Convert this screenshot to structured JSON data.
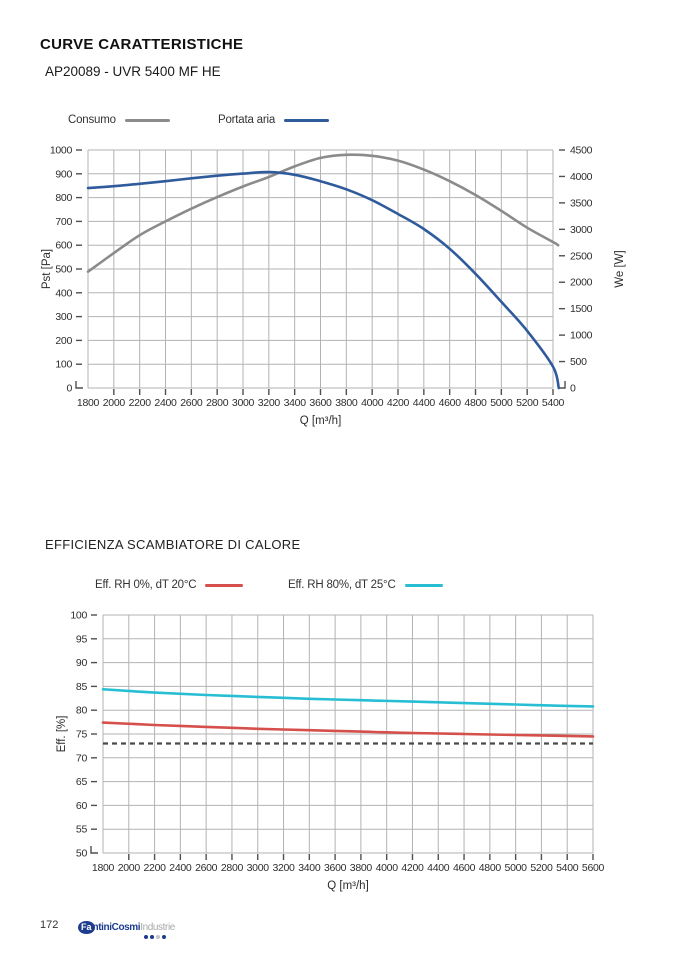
{
  "page": {
    "title": "CURVE CARATTERISTICHE",
    "subtitle": "AP20089 - UVR 5400 MF HE",
    "section2_title": "EFFICIENZA SCAMBIATORE DI CALORE",
    "page_number": "172"
  },
  "logo": {
    "part1": "Fa",
    "part2": "ntiniCosmi",
    "part3": "Industrie",
    "dot_colors": [
      "#1c3d8f",
      "#1c3d8f",
      "#c4c4c4",
      "#1c3d8f"
    ]
  },
  "colors": {
    "consumo_gray": "#8b8b8b",
    "portata_blue": "#2f5b9c",
    "eff_red": "#d6504b",
    "eff_cyan": "#27bed4",
    "reference_dash": "#4a4a4a",
    "grid": "#b3b3b3"
  },
  "chart_data": [
    {
      "type": "line",
      "title": "",
      "xlabel": "Q [m³/h]",
      "ylabel": "Pst [Pa]",
      "y2label": "We [W]",
      "xlim": [
        1800,
        5400
      ],
      "x_step": 200,
      "ylim": [
        0,
        1000
      ],
      "y_step": 100,
      "y2lim": [
        0,
        4500
      ],
      "y2_step": 500,
      "grid": true,
      "legend_position": "top",
      "legend": [
        {
          "label": "Consumo",
          "color": "#8b8b8b"
        },
        {
          "label": "Portata aria",
          "color": "#2f5b9c"
        }
      ],
      "series": [
        {
          "name": "Consumo",
          "axis": "y2",
          "color": "#8b8b8b",
          "x": [
            1800,
            2000,
            2200,
            2400,
            2600,
            2800,
            3000,
            3200,
            3400,
            3600,
            3800,
            4000,
            4200,
            4400,
            4600,
            4800,
            5000,
            5200,
            5400,
            5440
          ],
          "values": [
            2200,
            2550,
            2890,
            3150,
            3390,
            3610,
            3810,
            3990,
            4190,
            4350,
            4410,
            4390,
            4300,
            4130,
            3910,
            3650,
            3350,
            3030,
            2760,
            2700
          ]
        },
        {
          "name": "Portata aria",
          "axis": "y",
          "color": "#2f5b9c",
          "x": [
            1800,
            2000,
            2200,
            2400,
            2600,
            2800,
            3000,
            3200,
            3400,
            3600,
            3800,
            4000,
            4200,
            4400,
            4600,
            4800,
            5000,
            5200,
            5400,
            5445
          ],
          "values": [
            840,
            848,
            858,
            869,
            881,
            892,
            901,
            907,
            896,
            869,
            835,
            789,
            731,
            668,
            585,
            480,
            362,
            240,
            90,
            0
          ]
        }
      ]
    },
    {
      "type": "line",
      "title": "EFFICIENZA SCAMBIATORE DI CALORE",
      "xlabel": "Q [m³/h]",
      "ylabel": "Eff. [%]",
      "xlim": [
        1800,
        5600
      ],
      "x_step": 200,
      "ylim": [
        50,
        100
      ],
      "y_step": 5,
      "grid": true,
      "legend_position": "top",
      "legend": [
        {
          "label": "Eff. RH 0%, dT 20°C",
          "color": "#d6504b"
        },
        {
          "label": "Eff. RH 80%, dT 25°C",
          "color": "#27bed4"
        }
      ],
      "reference_line": {
        "value": 73,
        "style": "dashed",
        "color": "#4a4a4a"
      },
      "series": [
        {
          "name": "Eff. RH 0%, dT 20°C",
          "axis": "y",
          "color": "#d6504b",
          "x": [
            1800,
            2200,
            2600,
            3000,
            3400,
            3800,
            4200,
            4600,
            5000,
            5400,
            5600
          ],
          "values": [
            77.4,
            76.9,
            76.5,
            76.1,
            75.8,
            75.5,
            75.2,
            75.0,
            74.8,
            74.6,
            74.5
          ]
        },
        {
          "name": "Eff. RH 80%, dT 25°C",
          "axis": "y",
          "color": "#27bed4",
          "x": [
            1800,
            2200,
            2600,
            3000,
            3400,
            3800,
            4200,
            4600,
            5000,
            5400,
            5600
          ],
          "values": [
            84.4,
            83.7,
            83.2,
            82.8,
            82.4,
            82.1,
            81.8,
            81.5,
            81.2,
            80.9,
            80.8
          ]
        }
      ]
    }
  ]
}
